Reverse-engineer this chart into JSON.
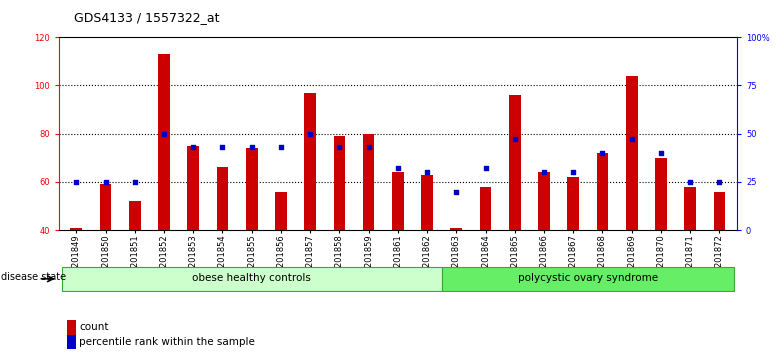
{
  "title": "GDS4133 / 1557322_at",
  "samples": [
    "GSM201849",
    "GSM201850",
    "GSM201851",
    "GSM201852",
    "GSM201853",
    "GSM201854",
    "GSM201855",
    "GSM201856",
    "GSM201857",
    "GSM201858",
    "GSM201859",
    "GSM201861",
    "GSM201862",
    "GSM201863",
    "GSM201864",
    "GSM201865",
    "GSM201866",
    "GSM201867",
    "GSM201868",
    "GSM201869",
    "GSM201870",
    "GSM201871",
    "GSM201872"
  ],
  "counts": [
    41,
    59,
    52,
    113,
    75,
    66,
    74,
    56,
    97,
    79,
    80,
    64,
    63,
    41,
    58,
    96,
    64,
    62,
    72,
    104,
    70,
    58,
    56
  ],
  "percentiles": [
    25,
    25,
    25,
    50,
    43,
    43,
    43,
    43,
    50,
    43,
    43,
    32,
    30,
    20,
    32,
    47,
    30,
    30,
    40,
    47,
    40,
    25,
    25
  ],
  "n_obese": 13,
  "n_poly": 10,
  "ylim_left": [
    40,
    120
  ],
  "ylim_right": [
    0,
    100
  ],
  "bar_color": "#cc0000",
  "dot_color": "#0000cc",
  "group_color_obese": "#ccffcc",
  "group_color_poly": "#66ee66",
  "group_border_color": "#33aa33",
  "title_fontsize": 9,
  "tick_fontsize": 6,
  "legend_count_label": "count",
  "legend_pct_label": "percentile rank within the sample"
}
